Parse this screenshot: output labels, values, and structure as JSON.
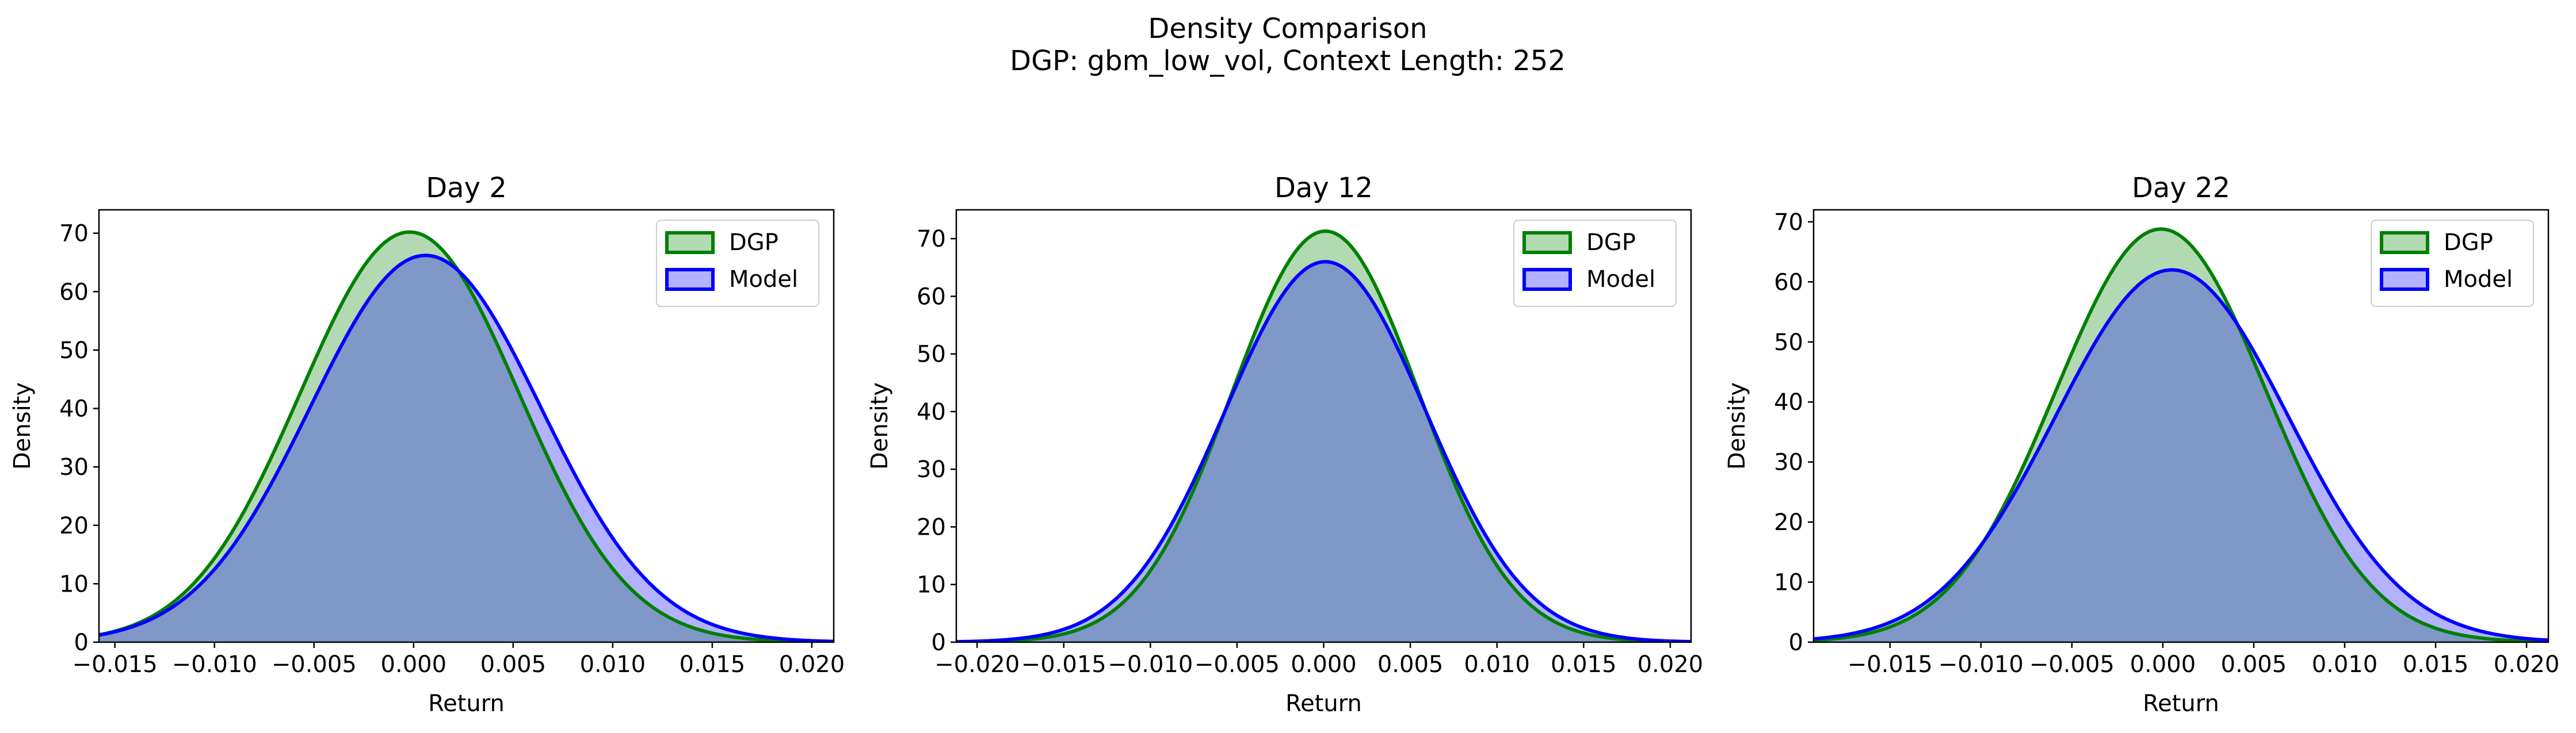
{
  "figure": {
    "suptitle_line1": "Density Comparison",
    "suptitle_line2": "DGP: gbm_low_vol, Context Length: 252"
  },
  "colors": {
    "dgp_line": "#008000",
    "dgp_fill": "#008000",
    "model_line": "#0000ff",
    "model_fill": "#0000ff",
    "overlap_tint": "#7f98c8"
  },
  "chart_data": [
    {
      "type": "area",
      "title": "Day 2",
      "xlabel": "Return",
      "ylabel": "Density",
      "xlim": [
        -0.0158,
        0.0211
      ],
      "ylim": [
        0,
        74
      ],
      "xticks": [
        -0.015,
        -0.01,
        -0.005,
        0.0,
        0.005,
        0.01,
        0.015,
        0.02
      ],
      "xtick_labels": [
        "−0.015",
        "−0.010",
        "−0.005",
        "0.000",
        "0.005",
        "0.010",
        "0.015",
        "0.020"
      ],
      "yticks": [
        0,
        10,
        20,
        30,
        40,
        50,
        60,
        70
      ],
      "ytick_labels": [
        "0",
        "10",
        "20",
        "30",
        "40",
        "50",
        "60",
        "70"
      ],
      "legend": "upper-right",
      "series": [
        {
          "name": "DGP",
          "mu": -0.0002,
          "sigma": 0.0055,
          "peak": 70.2
        },
        {
          "name": "Model",
          "mu": 0.0006,
          "sigma": 0.0058,
          "peak": 66.2
        }
      ]
    },
    {
      "type": "area",
      "title": "Day 12",
      "xlabel": "Return",
      "ylabel": "Density",
      "xlim": [
        -0.0212,
        0.0212
      ],
      "ylim": [
        0,
        75
      ],
      "xticks": [
        -0.02,
        -0.015,
        -0.01,
        -0.005,
        0.0,
        0.005,
        0.01,
        0.015,
        0.02
      ],
      "xtick_labels": [
        "−0.020",
        "−0.015",
        "−0.010",
        "−0.005",
        "0.000",
        "0.005",
        "0.010",
        "0.015",
        "0.020"
      ],
      "yticks": [
        0,
        10,
        20,
        30,
        40,
        50,
        60,
        70
      ],
      "ytick_labels": [
        "0",
        "10",
        "20",
        "30",
        "40",
        "50",
        "60",
        "70"
      ],
      "legend": "upper-right",
      "series": [
        {
          "name": "DGP",
          "mu": 0.0001,
          "sigma": 0.0054,
          "peak": 71.3
        },
        {
          "name": "Model",
          "mu": 0.0001,
          "sigma": 0.0058,
          "peak": 66.0
        }
      ]
    },
    {
      "type": "area",
      "title": "Day 22",
      "xlabel": "Return",
      "ylabel": "Density",
      "xlim": [
        -0.0192,
        0.0212
      ],
      "ylim": [
        0,
        72
      ],
      "xticks": [
        -0.015,
        -0.01,
        -0.005,
        0.0,
        0.005,
        0.01,
        0.015,
        0.02
      ],
      "xtick_labels": [
        "−0.015",
        "−0.010",
        "−0.005",
        "0.000",
        "0.005",
        "0.010",
        "0.015",
        "0.020"
      ],
      "yticks": [
        0,
        10,
        20,
        30,
        40,
        50,
        60,
        70
      ],
      "ytick_labels": [
        "0",
        "10",
        "20",
        "30",
        "40",
        "50",
        "60",
        "70"
      ],
      "legend": "upper-right",
      "series": [
        {
          "name": "DGP",
          "mu": -0.0001,
          "sigma": 0.0058,
          "peak": 68.8
        },
        {
          "name": "Model",
          "mu": 0.0005,
          "sigma": 0.0064,
          "peak": 62.0
        }
      ]
    }
  ]
}
